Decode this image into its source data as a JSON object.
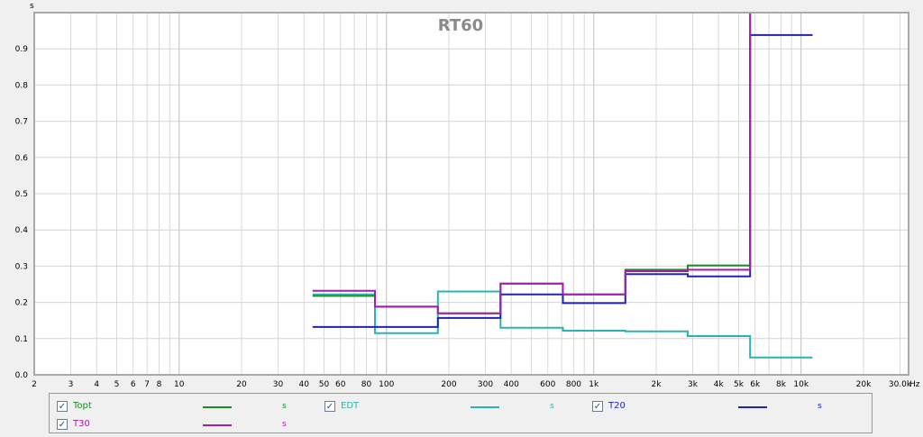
{
  "chart_data": {
    "type": "line",
    "title": "RT60",
    "ylabel": "s",
    "xlabel": "Hz",
    "x_scale": "log",
    "xlim": [
      2,
      33000
    ],
    "ylim": [
      0,
      1.0
    ],
    "grid": true,
    "x_tick_labels": [
      {
        "v": 2,
        "t": "2"
      },
      {
        "v": 3,
        "t": "3"
      },
      {
        "v": 4,
        "t": "4"
      },
      {
        "v": 5,
        "t": "5"
      },
      {
        "v": 6,
        "t": "6"
      },
      {
        "v": 7,
        "t": "7"
      },
      {
        "v": 8,
        "t": "8"
      },
      {
        "v": 10,
        "t": "10"
      },
      {
        "v": 20,
        "t": "20"
      },
      {
        "v": 30,
        "t": "30"
      },
      {
        "v": 40,
        "t": "40"
      },
      {
        "v": 50,
        "t": "50"
      },
      {
        "v": 60,
        "t": "60"
      },
      {
        "v": 80,
        "t": "80"
      },
      {
        "v": 100,
        "t": "100"
      },
      {
        "v": 200,
        "t": "200"
      },
      {
        "v": 300,
        "t": "300"
      },
      {
        "v": 400,
        "t": "400"
      },
      {
        "v": 600,
        "t": "600"
      },
      {
        "v": 800,
        "t": "800"
      },
      {
        "v": 1000,
        "t": "1k"
      },
      {
        "v": 2000,
        "t": "2k"
      },
      {
        "v": 3000,
        "t": "3k"
      },
      {
        "v": 4000,
        "t": "4k"
      },
      {
        "v": 5000,
        "t": "5k"
      },
      {
        "v": 6000,
        "t": "6k"
      },
      {
        "v": 8000,
        "t": "8k"
      },
      {
        "v": 10000,
        "t": "10k"
      },
      {
        "v": 20000,
        "t": "20k"
      },
      {
        "v": 30000,
        "t": "30.0k"
      }
    ],
    "y_tick_labels": [
      {
        "v": 0.0,
        "t": "0.0"
      },
      {
        "v": 0.1,
        "t": "0.1"
      },
      {
        "v": 0.2,
        "t": "0.2"
      },
      {
        "v": 0.3,
        "t": "0.3"
      },
      {
        "v": 0.4,
        "t": "0.4"
      },
      {
        "v": 0.5,
        "t": "0.5"
      },
      {
        "v": 0.6,
        "t": "0.6"
      },
      {
        "v": 0.7,
        "t": "0.7"
      },
      {
        "v": 0.8,
        "t": "0.8"
      },
      {
        "v": 0.9,
        "t": "0.9"
      }
    ],
    "band_edges": [
      44,
      88,
      177,
      355,
      710,
      1420,
      2840,
      5680,
      11360
    ],
    "series": [
      {
        "name": "Topt",
        "color": "#1f8a1f",
        "values": [
          0.218,
          0.188,
          0.17,
          0.252,
          0.222,
          0.29,
          0.302,
          1.05
        ]
      },
      {
        "name": "EDT",
        "color": "#2bb3b3",
        "values": [
          0.222,
          0.115,
          0.23,
          0.13,
          0.122,
          0.12,
          0.107,
          0.048
        ]
      },
      {
        "name": "T20",
        "color": "#2323b0",
        "values": [
          0.132,
          0.132,
          0.157,
          0.222,
          0.198,
          0.278,
          0.272,
          0.938
        ]
      },
      {
        "name": "T30",
        "color": "#a020a8",
        "values": [
          0.232,
          0.188,
          0.17,
          0.252,
          0.222,
          0.286,
          0.29,
          1.05
        ]
      }
    ]
  },
  "legend": {
    "unit": "s",
    "checkmark": "✓",
    "items": [
      {
        "name": "Topt",
        "color": "#1f8a1f"
      },
      {
        "name": "EDT",
        "color": "#2bb3b3"
      },
      {
        "name": "T20",
        "color": "#2323b0"
      },
      {
        "name": "T30",
        "color": "#a020a8"
      }
    ]
  }
}
